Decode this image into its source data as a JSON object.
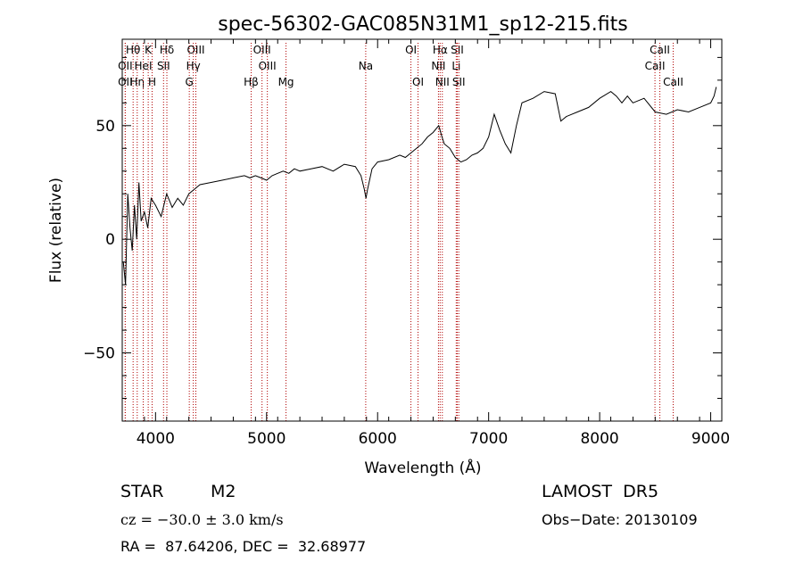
{
  "chart_data": {
    "type": "line",
    "title": "spec-56302-GAC085N31M1_sp12-215.fits",
    "xlabel": "Wavelength (Å)",
    "ylabel": "Flux (relative)",
    "xlim": [
      3700,
      9100
    ],
    "ylim": [
      -80,
      88
    ],
    "xticks": [
      4000,
      5000,
      6000,
      7000,
      8000,
      9000
    ],
    "yticks": [
      -50,
      0,
      50
    ],
    "series": [
      {
        "x": [
          3710,
          3730,
          3750,
          3770,
          3790,
          3810,
          3830,
          3850,
          3870,
          3900,
          3930,
          3960,
          4000,
          4050,
          4100,
          4150,
          4200,
          4250,
          4300,
          4350,
          4400,
          4500,
          4600,
          4700,
          4800,
          4850,
          4900,
          4950,
          5000,
          5050,
          5100,
          5150,
          5200,
          5250,
          5300,
          5400,
          5500,
          5600,
          5700,
          5800,
          5850,
          5880,
          5895,
          5910,
          5950,
          6000,
          6100,
          6200,
          6250,
          6300,
          6350,
          6400,
          6450,
          6500,
          6550,
          6580,
          6600,
          6650,
          6700,
          6750,
          6800,
          6850,
          6900,
          6950,
          7000,
          7050,
          7100,
          7150,
          7200,
          7250,
          7300,
          7400,
          7500,
          7600,
          7650,
          7700,
          7800,
          7900,
          8000,
          8100,
          8150,
          8200,
          8250,
          8300,
          8400,
          8500,
          8600,
          8700,
          8800,
          8900,
          9000,
          9030,
          9050
        ],
        "y": [
          -10,
          -20,
          20,
          5,
          -5,
          15,
          0,
          25,
          8,
          12,
          5,
          18,
          15,
          10,
          20,
          14,
          18,
          15,
          20,
          22,
          24,
          25,
          26,
          27,
          28,
          27,
          28,
          27,
          26,
          28,
          29,
          30,
          29,
          31,
          30,
          31,
          32,
          30,
          33,
          32,
          28,
          22,
          18,
          22,
          31,
          34,
          35,
          37,
          36,
          38,
          40,
          42,
          45,
          47,
          50,
          45,
          42,
          40,
          36,
          34,
          35,
          37,
          38,
          40,
          45,
          55,
          48,
          42,
          38,
          50,
          60,
          62,
          65,
          64,
          52,
          54,
          56,
          58,
          62,
          65,
          63,
          60,
          63,
          60,
          62,
          56,
          55,
          57,
          56,
          58,
          60,
          63,
          67
        ]
      }
    ],
    "lines": [
      {
        "label": "Hθ",
        "x": 3798,
        "row": 0
      },
      {
        "label": "OII",
        "x": 3727,
        "row": 1
      },
      {
        "label": "OII",
        "x": 3727,
        "row": 2
      },
      {
        "label": "Hη",
        "x": 3835,
        "row": 2
      },
      {
        "label": "HeI",
        "x": 3889,
        "row": 1
      },
      {
        "label": "K",
        "x": 3934,
        "row": 0
      },
      {
        "label": "H",
        "x": 3969,
        "row": 2
      },
      {
        "label": "Hδ",
        "x": 4102,
        "row": 0
      },
      {
        "label": "SII",
        "x": 4072,
        "row": 1
      },
      {
        "label": "OIII",
        "x": 4363,
        "row": 0
      },
      {
        "label": "Hγ",
        "x": 4340,
        "row": 1
      },
      {
        "label": "G",
        "x": 4304,
        "row": 2
      },
      {
        "label": "OIII",
        "x": 4959,
        "row": 0
      },
      {
        "label": "OIII",
        "x": 5007,
        "row": 1
      },
      {
        "label": "Hβ",
        "x": 4861,
        "row": 2
      },
      {
        "label": "Mg",
        "x": 5175,
        "row": 2
      },
      {
        "label": "Na",
        "x": 5893,
        "row": 1
      },
      {
        "label": "OI",
        "x": 6300,
        "row": 0
      },
      {
        "label": "OI",
        "x": 6364,
        "row": 2
      },
      {
        "label": "Hα",
        "x": 6563,
        "row": 0
      },
      {
        "label": "NII",
        "x": 6548,
        "row": 1
      },
      {
        "label": "NII",
        "x": 6583,
        "row": 2
      },
      {
        "label": "SII",
        "x": 6717,
        "row": 0
      },
      {
        "label": "Li",
        "x": 6708,
        "row": 1
      },
      {
        "label": "SII",
        "x": 6731,
        "row": 2
      },
      {
        "label": "CaII",
        "x": 8542,
        "row": 0
      },
      {
        "label": "CaII",
        "x": 8498,
        "row": 1
      },
      {
        "label": "CaII",
        "x": 8662,
        "row": 2
      }
    ]
  },
  "info": {
    "class": "STAR",
    "subclass": "M2",
    "survey": "LAMOST  DR5",
    "cz": "cz = −30.0 ± 3.0 km/s",
    "obs_date": "Obs−Date: 20130109",
    "coords": "RA =  87.64206, DEC =  32.68977"
  }
}
